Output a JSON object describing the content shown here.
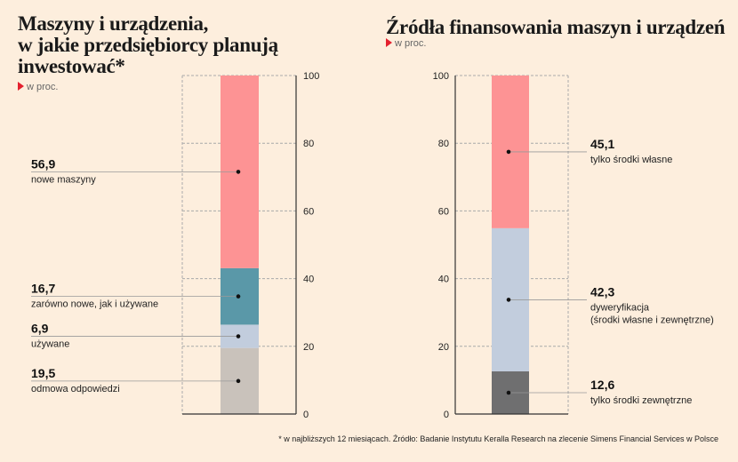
{
  "footnote": "* w najbliższych 12 miesiącach. Źródło: Badanie Instytutu Keralla Research na zlecenie Simens Financial Services w Polsce",
  "chart_data": [
    {
      "type": "bar",
      "stacked": true,
      "title_lines": [
        "Maszyny i urządzenia,",
        "w jakie przedsiębiorcy planują",
        "inwestować*"
      ],
      "subtitle": "w proc.",
      "ylim": [
        0,
        100
      ],
      "yticks": [
        "0",
        "20",
        "40",
        "60",
        "80",
        "100"
      ],
      "axis_side": "right",
      "grid": true,
      "segments": [
        {
          "value": 19.5,
          "value_label": "19,5",
          "label_lines": [
            "odmowa odpowiedzi"
          ],
          "color": "#c9c2bb"
        },
        {
          "value": 6.9,
          "value_label": "6,9",
          "label_lines": [
            "używane"
          ],
          "color": "#c2cddd"
        },
        {
          "value": 16.7,
          "value_label": "16,7",
          "label_lines": [
            "zarówno nowe, jak i używane"
          ],
          "color": "#5a98a8"
        },
        {
          "value": 56.9,
          "value_label": "56,9",
          "label_lines": [
            "nowe maszyny"
          ],
          "color": "#fd9394"
        }
      ]
    },
    {
      "type": "bar",
      "stacked": true,
      "title_lines": [
        "Źródła finansowania maszyn i urządzeń"
      ],
      "subtitle": "w proc.",
      "ylim": [
        0,
        100
      ],
      "yticks": [
        "0",
        "20",
        "40",
        "60",
        "80",
        "100"
      ],
      "axis_side": "left",
      "grid": true,
      "segments": [
        {
          "value": 12.6,
          "value_label": "12,6",
          "label_lines": [
            "tylko środki zewnętrzne"
          ],
          "color": "#6f6f70"
        },
        {
          "value": 42.3,
          "value_label": "42,3",
          "label_lines": [
            "dyweryfikacja",
            "(środki własne i zewnętrzne)"
          ],
          "color": "#c2cddd"
        },
        {
          "value": 45.1,
          "value_label": "45,1",
          "label_lines": [
            "tylko środki własne"
          ],
          "color": "#fd9394"
        }
      ]
    }
  ]
}
